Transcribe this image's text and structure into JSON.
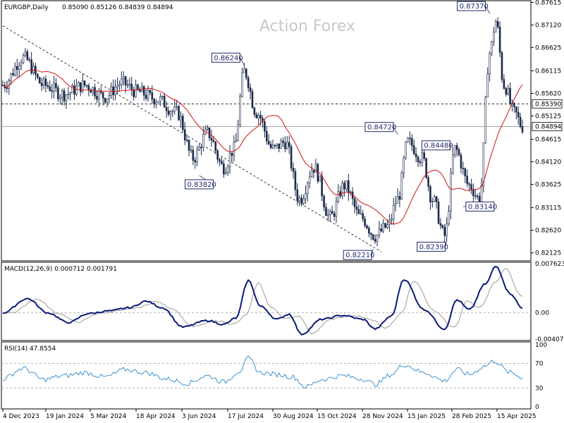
{
  "header": {
    "symbol": "EURGBP,Daily",
    "ohlc": "0.85090 0.85126 0.84839 0.84894",
    "watermark": "Action Forex"
  },
  "colors": {
    "candle": "#1b2a4a",
    "ma": "#d01414",
    "macd": "#0a1a7a",
    "signal": "#9a9a9a",
    "rsi": "#2a86c9",
    "trend": "#000000"
  },
  "chart_data": [
    {
      "type": "candlestick",
      "title": "EURGBP,Daily",
      "ylim": [
        0.8195,
        0.8765
      ],
      "y_ticks": [
        "0.87615",
        "0.87120",
        "0.86625",
        "0.86115",
        "0.85620",
        "0.85125",
        "0.84615",
        "0.84120",
        "0.83625",
        "0.83115",
        "0.82620",
        "0.82125"
      ],
      "levels": {
        "resistance": "0.85390",
        "last": "0.84894"
      },
      "x_ticks": [
        "4 Dec 2023",
        "19 Jan 2024",
        "5 Mar 2024",
        "18 Apr 2024",
        "3 Jun 2024",
        "17 Jul 2024",
        "30 Aug 2024",
        "15 Oct 2024",
        "28 Nov 2024",
        "15 Jan 2025",
        "28 Feb 2025",
        "15 Apr 2025"
      ],
      "anchors": [
        {
          "i": 0,
          "v": 0.858
        },
        {
          "i": 10,
          "v": 0.864
        },
        {
          "i": 20,
          "v": 0.858
        },
        {
          "i": 30,
          "v": 0.856
        },
        {
          "i": 40,
          "v": 0.858
        },
        {
          "i": 50,
          "v": 0.8555
        },
        {
          "i": 58,
          "v": 0.8585
        },
        {
          "i": 66,
          "v": 0.8565
        },
        {
          "i": 75,
          "v": 0.855
        },
        {
          "i": 85,
          "v": 0.852
        },
        {
          "i": 93,
          "v": 0.842
        },
        {
          "i": 100,
          "v": 0.8475
        },
        {
          "i": 108,
          "v": 0.84
        },
        {
          "i": 113,
          "v": 0.844
        },
        {
          "i": 118,
          "v": 0.861
        },
        {
          "i": 124,
          "v": 0.852
        },
        {
          "i": 132,
          "v": 0.844
        },
        {
          "i": 138,
          "v": 0.8455
        },
        {
          "i": 145,
          "v": 0.833
        },
        {
          "i": 152,
          "v": 0.84
        },
        {
          "i": 160,
          "v": 0.829
        },
        {
          "i": 167,
          "v": 0.836
        },
        {
          "i": 175,
          "v": 0.829
        },
        {
          "i": 182,
          "v": 0.825
        },
        {
          "i": 188,
          "v": 0.827
        },
        {
          "i": 193,
          "v": 0.833
        },
        {
          "i": 198,
          "v": 0.8455
        },
        {
          "i": 205,
          "v": 0.842
        },
        {
          "i": 210,
          "v": 0.833
        },
        {
          "i": 216,
          "v": 0.825
        },
        {
          "i": 221,
          "v": 0.844
        },
        {
          "i": 228,
          "v": 0.836
        },
        {
          "i": 233,
          "v": 0.833
        },
        {
          "i": 238,
          "v": 0.865
        },
        {
          "i": 241,
          "v": 0.872
        },
        {
          "i": 245,
          "v": 0.858
        },
        {
          "i": 250,
          "v": 0.852
        },
        {
          "i": 254,
          "v": 0.8489
        }
      ],
      "annotations": [
        {
          "text": "0.83820",
          "i": 96,
          "v": 0.8382,
          "pos": "below"
        },
        {
          "text": "0.86240",
          "i": 118,
          "v": 0.8624,
          "pos": "above-left"
        },
        {
          "text": "0.82210",
          "i": 181,
          "v": 0.8221,
          "pos": "below-left"
        },
        {
          "text": "0.84720",
          "i": 193,
          "v": 0.8472,
          "pos": "above-left"
        },
        {
          "text": "0.84480",
          "i": 220,
          "v": 0.8448,
          "pos": "left"
        },
        {
          "text": "0.83140",
          "i": 225,
          "v": 0.8314,
          "pos": "right"
        },
        {
          "text": "0.82390",
          "i": 217,
          "v": 0.8239,
          "pos": "below-left"
        },
        {
          "text": "0.87370",
          "i": 238,
          "v": 0.8737,
          "pos": "above-left"
        }
      ],
      "trendline": [
        {
          "i": 0,
          "v": 0.871
        },
        {
          "i": 185,
          "v": 0.8215
        }
      ],
      "ma_period": 20
    },
    {
      "type": "line",
      "title": "MACD(12,26,9) 0.000712 0.001791",
      "ylim": [
        -0.004073,
        0.007623
      ],
      "y_ticks": [
        "0.007623",
        "0.00",
        "-0.004073"
      ],
      "series": [
        {
          "name": "MACD",
          "anchors": [
            {
              "i": 0,
              "v": 0.0
            },
            {
              "i": 12,
              "v": 0.0022
            },
            {
              "i": 22,
              "v": 0.0
            },
            {
              "i": 32,
              "v": -0.0015
            },
            {
              "i": 42,
              "v": -0.0001
            },
            {
              "i": 52,
              "v": 0.0003
            },
            {
              "i": 62,
              "v": 0.0008
            },
            {
              "i": 70,
              "v": 0.0018
            },
            {
              "i": 78,
              "v": 0.0008
            },
            {
              "i": 88,
              "v": -0.0022
            },
            {
              "i": 100,
              "v": -0.0012
            },
            {
              "i": 108,
              "v": -0.0018
            },
            {
              "i": 114,
              "v": -0.0008
            },
            {
              "i": 120,
              "v": 0.005
            },
            {
              "i": 126,
              "v": 0.001
            },
            {
              "i": 134,
              "v": -0.001
            },
            {
              "i": 140,
              "v": -0.0002
            },
            {
              "i": 146,
              "v": -0.0033
            },
            {
              "i": 156,
              "v": -0.001
            },
            {
              "i": 166,
              "v": -0.0004
            },
            {
              "i": 176,
              "v": -0.001
            },
            {
              "i": 182,
              "v": -0.0025
            },
            {
              "i": 190,
              "v": -0.0005
            },
            {
              "i": 196,
              "v": 0.0052
            },
            {
              "i": 206,
              "v": 0.0005
            },
            {
              "i": 216,
              "v": -0.0025
            },
            {
              "i": 222,
              "v": 0.002
            },
            {
              "i": 228,
              "v": 0.0005
            },
            {
              "i": 236,
              "v": 0.0045
            },
            {
              "i": 241,
              "v": 0.0072
            },
            {
              "i": 248,
              "v": 0.003
            },
            {
              "i": 254,
              "v": 0.0007
            }
          ]
        },
        {
          "name": "Signal",
          "lag": 5
        }
      ]
    },
    {
      "type": "line",
      "title": "RSI(14) 47.8554",
      "ylim": [
        0,
        100
      ],
      "y_ticks": [
        "100",
        "70",
        "30",
        "0"
      ],
      "levels": [
        70,
        30
      ],
      "anchors": [
        {
          "i": 0,
          "v": 45
        },
        {
          "i": 10,
          "v": 62
        },
        {
          "i": 20,
          "v": 44
        },
        {
          "i": 30,
          "v": 50
        },
        {
          "i": 40,
          "v": 55
        },
        {
          "i": 50,
          "v": 48
        },
        {
          "i": 60,
          "v": 60
        },
        {
          "i": 70,
          "v": 55
        },
        {
          "i": 80,
          "v": 45
        },
        {
          "i": 90,
          "v": 38
        },
        {
          "i": 100,
          "v": 50
        },
        {
          "i": 108,
          "v": 40
        },
        {
          "i": 116,
          "v": 58
        },
        {
          "i": 120,
          "v": 78
        },
        {
          "i": 126,
          "v": 55
        },
        {
          "i": 134,
          "v": 52
        },
        {
          "i": 142,
          "v": 48
        },
        {
          "i": 148,
          "v": 32
        },
        {
          "i": 156,
          "v": 44
        },
        {
          "i": 166,
          "v": 50
        },
        {
          "i": 176,
          "v": 45
        },
        {
          "i": 182,
          "v": 36
        },
        {
          "i": 190,
          "v": 52
        },
        {
          "i": 196,
          "v": 68
        },
        {
          "i": 206,
          "v": 55
        },
        {
          "i": 216,
          "v": 42
        },
        {
          "i": 222,
          "v": 60
        },
        {
          "i": 228,
          "v": 52
        },
        {
          "i": 236,
          "v": 66
        },
        {
          "i": 240,
          "v": 74
        },
        {
          "i": 248,
          "v": 55
        },
        {
          "i": 254,
          "v": 47.86
        }
      ]
    }
  ]
}
